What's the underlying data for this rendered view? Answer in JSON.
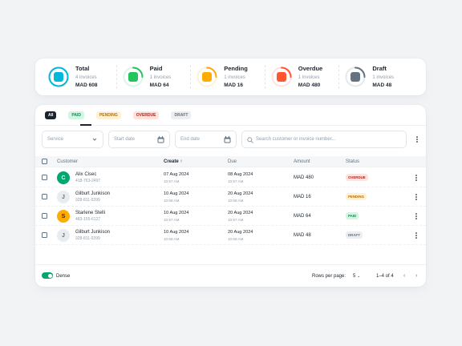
{
  "summary": [
    {
      "title": "Total",
      "count": "4 invoices",
      "amount": "MAD 608",
      "color": "#00b8d9",
      "progress": 1.0,
      "icon": "invoice-icon"
    },
    {
      "title": "Paid",
      "count": "1 invoices",
      "amount": "MAD 64",
      "color": "#22c55e",
      "progress": 0.25,
      "icon": "paid-file-icon"
    },
    {
      "title": "Pending",
      "count": "1 invoices",
      "amount": "MAD 16",
      "color": "#ffab00",
      "progress": 0.25,
      "icon": "coin-icon"
    },
    {
      "title": "Overdue",
      "count": "1 invoices",
      "amount": "MAD 480",
      "color": "#ff5630",
      "progress": 0.25,
      "icon": "alarm-bell-icon"
    },
    {
      "title": "Draft",
      "count": "1 invoices",
      "amount": "MAD 48",
      "color": "#637381",
      "progress": 0.25,
      "icon": "draft-file-icon"
    }
  ],
  "tabs": [
    {
      "label": "All",
      "style": "active"
    },
    {
      "label": "PAID",
      "style": "paid"
    },
    {
      "label": "PENDING",
      "style": "pending"
    },
    {
      "label": "OVERDUE",
      "style": "overdue"
    },
    {
      "label": "DRAFT",
      "style": "draft"
    }
  ],
  "filters": {
    "service": "Service",
    "start_date": "Start date",
    "end_date": "End date",
    "search_placeholder": "Search customer or invoice number..."
  },
  "table": {
    "headers": {
      "customer": "Customer",
      "create": "Create",
      "due": "Due",
      "amount": "Amount",
      "status": "Status"
    },
    "rows": [
      {
        "initial": "C",
        "avatar_bg": "#00a76f",
        "avatar_fg": "#ffffff",
        "name": "Alix Cisec",
        "phone": "418-763-2497",
        "create_date": "07 Aug 2024",
        "create_time": "10:57 AM",
        "due_date": "08 Aug 2024",
        "due_time": "10:57 AM",
        "amount": "MAD 480",
        "status": "OVERDUE",
        "status_style": "overdue"
      },
      {
        "initial": "J",
        "avatar_bg": "#e9ecef",
        "avatar_fg": "#637381",
        "name": "Gilburt Junkison",
        "phone": "928-811-0399",
        "create_date": "10 Aug 2024",
        "create_time": "10:58 AM",
        "due_date": "20 Aug 2024",
        "due_time": "10:58 AM",
        "amount": "MAD 16",
        "status": "PENDING",
        "status_style": "pending"
      },
      {
        "initial": "S",
        "avatar_bg": "#ffab00",
        "avatar_fg": "#1c252e",
        "name": "Starlene Stelli",
        "phone": "483-155-6127",
        "create_date": "10 Aug 2024",
        "create_time": "10:57 AM",
        "due_date": "20 Aug 2024",
        "due_time": "10:57 AM",
        "amount": "MAD 64",
        "status": "PAID",
        "status_style": "paid"
      },
      {
        "initial": "J",
        "avatar_bg": "#e9ecef",
        "avatar_fg": "#637381",
        "name": "Gilburt Junkison",
        "phone": "928-811-0399",
        "create_date": "10 Aug 2024",
        "create_time": "10:59 AM",
        "due_date": "20 Aug 2024",
        "due_time": "10:59 AM",
        "amount": "MAD 48",
        "status": "DRAFT",
        "status_style": "draft"
      }
    ]
  },
  "footer": {
    "dense_label": "Dense",
    "rows_per_page_label": "Rows per page:",
    "rows_per_page_value": "5",
    "range": "1–4 of 4",
    "prev": "‹",
    "next": "›"
  }
}
